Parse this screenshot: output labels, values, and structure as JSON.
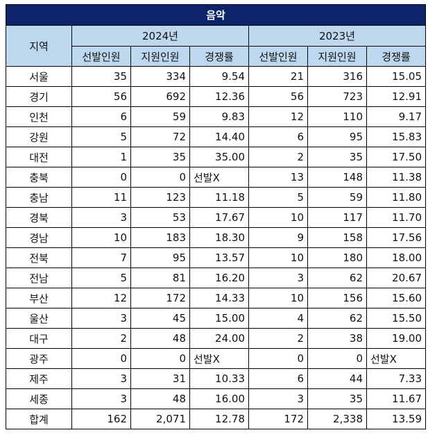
{
  "table": {
    "title": "음악",
    "region_header": "지역",
    "years": [
      "2024년",
      "2023년"
    ],
    "sub_headers": [
      "선발인원",
      "지원인원",
      "경쟁률"
    ],
    "rows": [
      {
        "region": "서울",
        "y2024": [
          "35",
          "334",
          "9.54"
        ],
        "y2023": [
          "21",
          "316",
          "15.05"
        ]
      },
      {
        "region": "경기",
        "y2024": [
          "56",
          "692",
          "12.36"
        ],
        "y2023": [
          "56",
          "723",
          "12.91"
        ]
      },
      {
        "region": "인천",
        "y2024": [
          "6",
          "59",
          "9.83"
        ],
        "y2023": [
          "12",
          "110",
          "9.17"
        ]
      },
      {
        "region": "강원",
        "y2024": [
          "5",
          "72",
          "14.40"
        ],
        "y2023": [
          "6",
          "95",
          "15.83"
        ]
      },
      {
        "region": "대전",
        "y2024": [
          "1",
          "35",
          "35.00"
        ],
        "y2023": [
          "2",
          "35",
          "17.50"
        ]
      },
      {
        "region": "충북",
        "y2024": [
          "0",
          "0",
          "선발X"
        ],
        "y2023": [
          "13",
          "148",
          "11.38"
        ]
      },
      {
        "region": "충남",
        "y2024": [
          "11",
          "123",
          "11.18"
        ],
        "y2023": [
          "5",
          "59",
          "11.80"
        ]
      },
      {
        "region": "경북",
        "y2024": [
          "3",
          "53",
          "17.67"
        ],
        "y2023": [
          "10",
          "117",
          "11.70"
        ]
      },
      {
        "region": "경남",
        "y2024": [
          "10",
          "183",
          "18.30"
        ],
        "y2023": [
          "9",
          "158",
          "17.56"
        ]
      },
      {
        "region": "전북",
        "y2024": [
          "7",
          "95",
          "13.57"
        ],
        "y2023": [
          "10",
          "180",
          "18.00"
        ]
      },
      {
        "region": "전남",
        "y2024": [
          "5",
          "81",
          "16.20"
        ],
        "y2023": [
          "3",
          "62",
          "20.67"
        ]
      },
      {
        "region": "부산",
        "y2024": [
          "12",
          "172",
          "14.33"
        ],
        "y2023": [
          "10",
          "156",
          "15.60"
        ]
      },
      {
        "region": "울산",
        "y2024": [
          "3",
          "45",
          "15.00"
        ],
        "y2023": [
          "4",
          "62",
          "15.50"
        ]
      },
      {
        "region": "대구",
        "y2024": [
          "2",
          "48",
          "24.00"
        ],
        "y2023": [
          "2",
          "38",
          "19.00"
        ]
      },
      {
        "region": "광주",
        "y2024": [
          "0",
          "0",
          "선발X"
        ],
        "y2023": [
          "0",
          "0",
          "선발X"
        ]
      },
      {
        "region": "제주",
        "y2024": [
          "3",
          "31",
          "10.33"
        ],
        "y2023": [
          "6",
          "44",
          "7.33"
        ]
      },
      {
        "region": "세종",
        "y2024": [
          "3",
          "48",
          "16.00"
        ],
        "y2023": [
          "3",
          "35",
          "11.67"
        ]
      },
      {
        "region": "합계",
        "y2024": [
          "162",
          "2,071",
          "12.78"
        ],
        "y2023": [
          "172",
          "2,338",
          "13.59"
        ]
      }
    ]
  },
  "colors": {
    "title_bg": "#0c2469",
    "header_bg": "#bdd7ee"
  }
}
